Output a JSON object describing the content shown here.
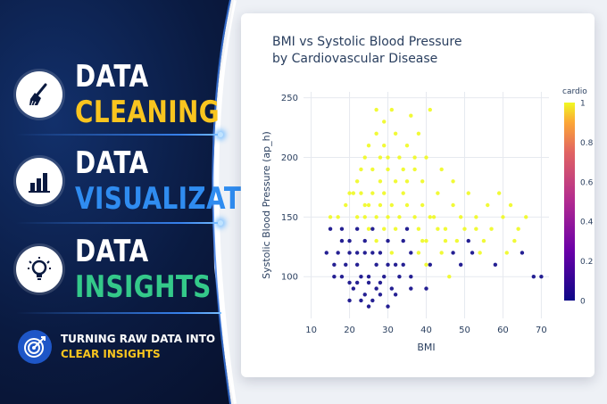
{
  "promo": {
    "items": [
      {
        "line1": "DATA",
        "line2": "CLEANING",
        "icon": "broom-icon"
      },
      {
        "line1": "DATA",
        "line2": "VISUALIZATION",
        "icon": "bar-chart-icon"
      },
      {
        "line1": "DATA",
        "line2": "INSIGHTS",
        "icon": "lightbulb-icon"
      }
    ],
    "tagline_line1": "TURNING RAW DATA INTO",
    "tagline_line2": "CLEAR INSIGHTS",
    "tagline_icon": "target-icon"
  },
  "colors": {
    "yellow": "#f9c51f",
    "blue": "#2f8cf0",
    "green": "#34c98a",
    "navy": "#0a1a40"
  },
  "chart_data": {
    "type": "scatter",
    "title_line1": "BMI vs Systolic Blood Pressure",
    "title_line2": "by Cardiovascular Disease",
    "xlabel": "BMI",
    "ylabel": "Systolic Blood Pressure (ap_h)",
    "xlim": [
      8,
      72
    ],
    "ylim": [
      65,
      255
    ],
    "xticks": [
      10,
      20,
      30,
      40,
      50,
      60,
      70
    ],
    "yticks": [
      100,
      150,
      200,
      250
    ],
    "grid": true,
    "colorscale": "plasma",
    "colorbar": {
      "title": "cardio",
      "range": [
        0,
        1
      ],
      "ticks": [
        0,
        0.2,
        0.4,
        0.6,
        0.8,
        1
      ]
    },
    "points": [
      [
        25,
        140,
        1
      ],
      [
        28,
        160,
        1
      ],
      [
        30,
        150,
        1
      ],
      [
        24,
        120,
        0
      ],
      [
        22,
        110,
        0
      ],
      [
        27,
        130,
        1
      ],
      [
        32,
        140,
        1
      ],
      [
        26,
        120,
        0
      ],
      [
        29,
        170,
        1
      ],
      [
        35,
        160,
        1
      ],
      [
        23,
        100,
        0
      ],
      [
        21,
        90,
        0
      ],
      [
        31,
        120,
        1
      ],
      [
        33,
        150,
        1
      ],
      [
        27,
        110,
        0
      ],
      [
        25,
        100,
        0
      ],
      [
        38,
        140,
        1
      ],
      [
        40,
        130,
        1
      ],
      [
        36,
        120,
        0
      ],
      [
        42,
        150,
        1
      ],
      [
        45,
        140,
        1
      ],
      [
        20,
        120,
        0
      ],
      [
        19,
        110,
        0
      ],
      [
        28,
        180,
        1
      ],
      [
        30,
        200,
        1
      ],
      [
        34,
        190,
        1
      ],
      [
        26,
        190,
        1
      ],
      [
        24,
        160,
        1
      ],
      [
        22,
        150,
        1
      ],
      [
        18,
        130,
        0
      ],
      [
        17,
        120,
        0
      ],
      [
        16,
        110,
        0
      ],
      [
        29,
        100,
        0
      ],
      [
        31,
        90,
        0
      ],
      [
        27,
        90,
        0
      ],
      [
        23,
        80,
        0
      ],
      [
        26,
        80,
        0
      ],
      [
        33,
        100,
        0
      ],
      [
        36,
        100,
        0
      ],
      [
        40,
        110,
        1
      ],
      [
        44,
        120,
        1
      ],
      [
        48,
        130,
        1
      ],
      [
        50,
        140,
        1
      ],
      [
        52,
        120,
        0
      ],
      [
        55,
        130,
        1
      ],
      [
        58,
        110,
        0
      ],
      [
        60,
        150,
        1
      ],
      [
        63,
        130,
        1
      ],
      [
        65,
        120,
        0
      ],
      [
        68,
        100,
        0
      ],
      [
        70,
        100,
        0
      ],
      [
        62,
        160,
        1
      ],
      [
        53,
        150,
        1
      ],
      [
        47,
        160,
        1
      ],
      [
        43,
        170,
        1
      ],
      [
        39,
        180,
        1
      ],
      [
        37,
        200,
        1
      ],
      [
        35,
        210,
        1
      ],
      [
        32,
        220,
        1
      ],
      [
        29,
        230,
        1
      ],
      [
        27,
        240,
        1
      ],
      [
        31,
        240,
        1
      ],
      [
        36,
        235,
        1
      ],
      [
        41,
        240,
        1
      ],
      [
        24,
        200,
        1
      ],
      [
        22,
        180,
        1
      ],
      [
        20,
        170,
        1
      ],
      [
        15,
        150,
        1
      ],
      [
        15,
        140,
        0
      ],
      [
        14,
        120,
        0
      ],
      [
        16,
        100,
        0
      ],
      [
        18,
        100,
        0
      ],
      [
        20,
        95,
        0
      ],
      [
        22,
        95,
        0
      ],
      [
        25,
        95,
        0
      ],
      [
        28,
        95,
        0
      ],
      [
        30,
        110,
        0
      ],
      [
        34,
        110,
        0
      ],
      [
        38,
        120,
        1
      ],
      [
        41,
        110,
        0
      ],
      [
        46,
        100,
        1
      ],
      [
        49,
        110,
        0
      ],
      [
        54,
        120,
        1
      ],
      [
        57,
        140,
        1
      ],
      [
        61,
        120,
        1
      ],
      [
        64,
        140,
        1
      ],
      [
        66,
        150,
        1
      ],
      [
        59,
        170,
        1
      ],
      [
        56,
        160,
        1
      ],
      [
        51,
        170,
        1
      ],
      [
        47,
        180,
        1
      ],
      [
        44,
        190,
        1
      ],
      [
        40,
        200,
        1
      ],
      [
        38,
        220,
        1
      ],
      [
        34,
        170,
        1
      ],
      [
        32,
        180,
        1
      ],
      [
        30,
        190,
        1
      ],
      [
        28,
        200,
        1
      ],
      [
        26,
        170,
        1
      ],
      [
        24,
        150,
        1
      ],
      [
        22,
        140,
        0
      ],
      [
        20,
        130,
        0
      ],
      [
        18,
        140,
        0
      ],
      [
        17,
        150,
        1
      ],
      [
        19,
        160,
        1
      ],
      [
        21,
        170,
        1
      ],
      [
        23,
        190,
        1
      ],
      [
        25,
        210,
        1
      ],
      [
        27,
        220,
        1
      ],
      [
        29,
        210,
        1
      ],
      [
        33,
        200,
        1
      ],
      [
        37,
        190,
        1
      ],
      [
        39,
        160,
        1
      ],
      [
        41,
        150,
        1
      ],
      [
        43,
        140,
        1
      ],
      [
        45,
        130,
        1
      ],
      [
        47,
        120,
        0
      ],
      [
        49,
        150,
        1
      ],
      [
        51,
        130,
        0
      ],
      [
        53,
        140,
        1
      ],
      [
        20,
        80,
        0
      ],
      [
        24,
        85,
        0
      ],
      [
        28,
        85,
        0
      ],
      [
        32,
        85,
        0
      ],
      [
        36,
        90,
        0
      ],
      [
        40,
        90,
        0
      ],
      [
        30,
        75,
        0
      ],
      [
        25,
        75,
        0
      ],
      [
        34,
        130,
        0
      ],
      [
        30,
        130,
        0
      ],
      [
        26,
        140,
        0
      ],
      [
        24,
        130,
        0
      ],
      [
        22,
        120,
        0
      ],
      [
        28,
        120,
        0
      ],
      [
        32,
        110,
        0
      ],
      [
        35,
        140,
        0
      ],
      [
        37,
        150,
        1
      ],
      [
        39,
        130,
        1
      ],
      [
        31,
        160,
        1
      ],
      [
        29,
        140,
        1
      ],
      [
        27,
        150,
        1
      ],
      [
        25,
        160,
        1
      ],
      [
        23,
        170,
        1
      ],
      [
        35,
        180,
        1
      ]
    ]
  }
}
